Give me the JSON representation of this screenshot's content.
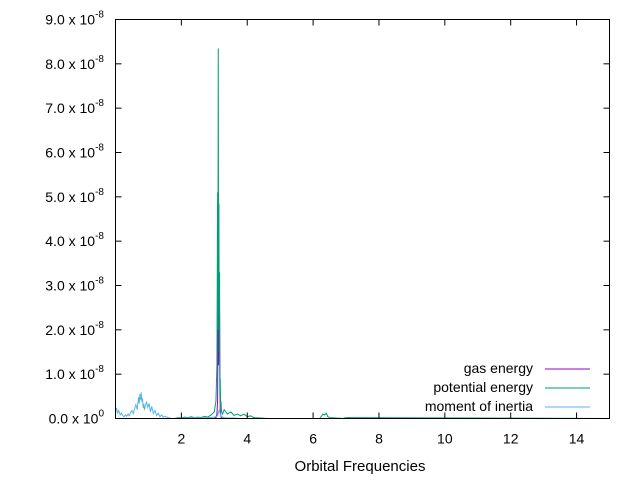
{
  "chart_data": {
    "type": "line",
    "title": "",
    "xlabel": "Orbital Frequencies",
    "ylabel": "",
    "xlim": [
      0,
      15
    ],
    "ylim": [
      0,
      9e-08
    ],
    "xticks": [
      2,
      4,
      6,
      8,
      10,
      12,
      14
    ],
    "xtick_labels": [
      "2",
      "4",
      "6",
      "8",
      "10",
      "12",
      "14"
    ],
    "yticks": [
      0,
      1e-08,
      2e-08,
      3e-08,
      4e-08,
      5e-08,
      6e-08,
      7e-08,
      8e-08,
      9e-08
    ],
    "ytick_labels": [
      {
        "mantissa": "0.0 x 10",
        "exp": "0"
      },
      {
        "mantissa": "1.0 x 10",
        "exp": "-8"
      },
      {
        "mantissa": "2.0 x 10",
        "exp": "-8"
      },
      {
        "mantissa": "3.0 x 10",
        "exp": "-8"
      },
      {
        "mantissa": "4.0 x 10",
        "exp": "-8"
      },
      {
        "mantissa": "5.0 x 10",
        "exp": "-8"
      },
      {
        "mantissa": "6.0 x 10",
        "exp": "-8"
      },
      {
        "mantissa": "7.0 x 10",
        "exp": "-8"
      },
      {
        "mantissa": "8.0 x 10",
        "exp": "-8"
      },
      {
        "mantissa": "9.0 x 10",
        "exp": "-8"
      }
    ],
    "grid": false,
    "legend_position": "bottom-right",
    "series": [
      {
        "name": "gas energy",
        "color": "#9400d3",
        "x": [
          0.0,
          3.0,
          3.05,
          3.08,
          3.1,
          3.11,
          3.12,
          3.13,
          3.14,
          3.15,
          3.16,
          3.17,
          3.18,
          3.2,
          3.25,
          15.0
        ],
        "y": [
          0,
          0,
          2e-10,
          1e-09,
          4e-09,
          1.8e-08,
          3.3e-08,
          1.2e-08,
          2.3e-08,
          1.6e-08,
          2.4e-08,
          8e-09,
          2e-09,
          4e-10,
          0,
          0
        ]
      },
      {
        "name": "potential energy",
        "color": "#009e73",
        "x": [
          0.0,
          1.8,
          1.9,
          2.0,
          2.1,
          2.2,
          2.3,
          2.4,
          2.5,
          2.6,
          2.7,
          2.8,
          2.9,
          3.0,
          3.05,
          3.08,
          3.1,
          3.11,
          3.12,
          3.13,
          3.14,
          3.15,
          3.16,
          3.17,
          3.18,
          3.19,
          3.2,
          3.22,
          3.25,
          3.3,
          3.4,
          3.5,
          3.6,
          3.7,
          3.8,
          3.9,
          4.0,
          4.1,
          4.2,
          4.4,
          4.6,
          6.2,
          6.25,
          6.3,
          6.35,
          6.4,
          6.45,
          6.5,
          6.9,
          7.0,
          15.0
        ],
        "y": [
          0,
          0,
          2e-10,
          1e-10,
          3e-10,
          2e-10,
          4e-10,
          2e-10,
          3e-10,
          2e-10,
          5e-10,
          3e-10,
          8e-10,
          1.5e-09,
          4e-09,
          1.2e-08,
          5.1e-08,
          2e-08,
          8.35e-08,
          3e-08,
          4.85e-08,
          1.5e-08,
          3.3e-08,
          5e-09,
          9e-09,
          3e-09,
          4e-09,
          1.5e-09,
          1e-09,
          2e-09,
          1e-09,
          1.5e-09,
          7e-10,
          1e-09,
          6e-10,
          1e-09,
          4e-10,
          6e-10,
          2e-10,
          1e-10,
          0,
          0,
          5e-10,
          1e-09,
          8e-10,
          1.2e-09,
          4e-10,
          2e-10,
          0,
          2e-10,
          0
        ]
      },
      {
        "name": "moment of inertia",
        "color": "#56b4e9",
        "x": [
          0.0,
          0.03,
          0.06,
          0.1,
          0.14,
          0.18,
          0.22,
          0.26,
          0.3,
          0.34,
          0.38,
          0.42,
          0.46,
          0.5,
          0.54,
          0.58,
          0.62,
          0.66,
          0.7,
          0.72,
          0.74,
          0.76,
          0.78,
          0.8,
          0.82,
          0.84,
          0.86,
          0.88,
          0.9,
          0.94,
          0.98,
          1.02,
          1.06,
          1.1,
          1.15,
          1.2,
          1.25,
          1.3,
          1.35,
          1.4,
          1.45,
          1.5,
          1.6,
          1.7,
          2.0,
          2.2,
          2.4,
          2.6,
          2.8,
          3.0,
          3.1,
          3.15,
          3.2,
          3.3,
          3.4,
          3.6,
          3.8,
          4.0,
          15.0
        ],
        "y": [
          1.5e-09,
          2.4e-09,
          1.2e-09,
          1.8e-09,
          8e-10,
          1.2e-09,
          6e-10,
          4e-10,
          8e-10,
          5e-10,
          1e-09,
          6e-10,
          1.4e-09,
          1.8e-09,
          1.1e-09,
          2.2e-09,
          3.1e-09,
          2e-09,
          4.8e-09,
          3.4e-09,
          5.5e-09,
          4.2e-09,
          5.9e-09,
          3.8e-09,
          4.6e-09,
          2.4e-09,
          3.3e-09,
          1.9e-09,
          2.7e-09,
          3.8e-09,
          2.5e-09,
          3.4e-09,
          1.5e-09,
          2.7e-09,
          1.1e-09,
          1.8e-09,
          7e-10,
          1.2e-09,
          4e-10,
          8e-10,
          3e-10,
          5e-10,
          2e-10,
          0,
          0,
          1e-10,
          2e-10,
          1e-10,
          2e-10,
          3e-10,
          6e-10,
          2e-09,
          5e-10,
          2e-10,
          1e-10,
          1e-10,
          0,
          0,
          0
        ]
      }
    ]
  }
}
